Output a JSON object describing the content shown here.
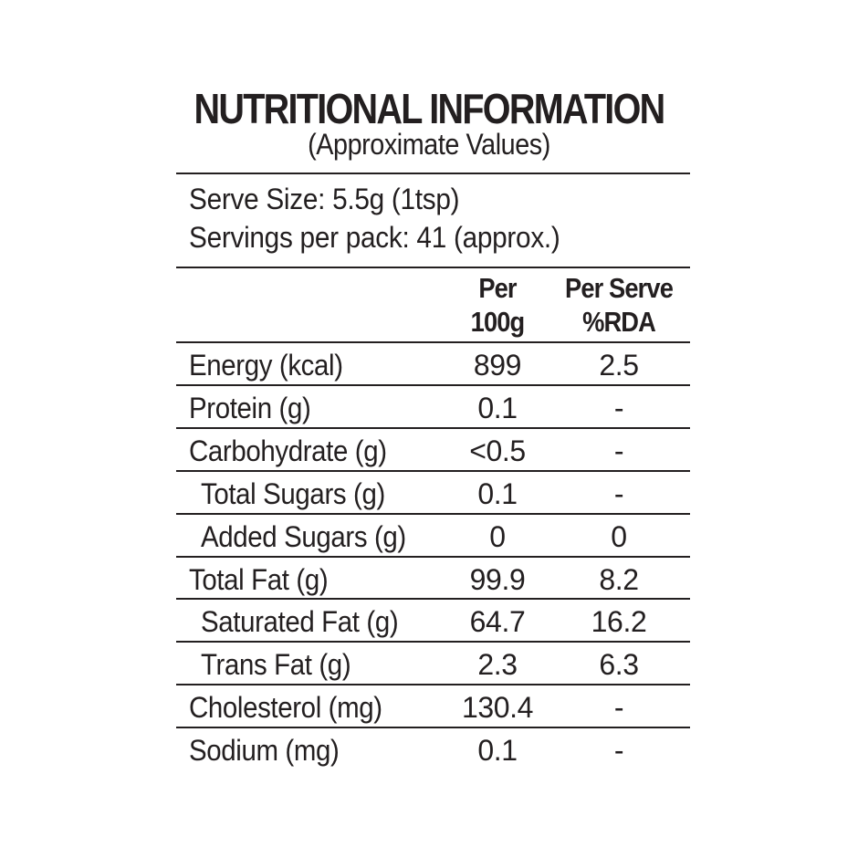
{
  "title": "NUTRITIONAL INFORMATION",
  "subtitle": "(Approximate Values)",
  "serve_size": "Serve Size: 5.5g (1tsp)",
  "servings": "Servings per pack: 41 (approx.)",
  "columns": {
    "per100_l1": "Per",
    "per100_l2": "100g",
    "rda_l1": "Per Serve",
    "rda_l2": "%RDA"
  },
  "rows": [
    {
      "label": "Energy (kcal)",
      "per100": "899",
      "rda": "2.5",
      "indent": false
    },
    {
      "label": "Protein (g)",
      "per100": "0.1",
      "rda": "-",
      "indent": false
    },
    {
      "label": "Carbohydrate (g)",
      "per100": "<0.5",
      "rda": "-",
      "indent": false
    },
    {
      "label": "Total Sugars (g)",
      "per100": "0.1",
      "rda": "-",
      "indent": true
    },
    {
      "label": "Added Sugars (g)",
      "per100": "0",
      "rda": "0",
      "indent": true
    },
    {
      "label": "Total Fat (g)",
      "per100": "99.9",
      "rda": "8.2",
      "indent": false
    },
    {
      "label": "Saturated Fat (g)",
      "per100": "64.7",
      "rda": "16.2",
      "indent": true
    },
    {
      "label": "Trans Fat (g)",
      "per100": "2.3",
      "rda": "6.3",
      "indent": true
    },
    {
      "label": "Cholesterol (mg)",
      "per100": "130.4",
      "rda": "-",
      "indent": false
    },
    {
      "label": "Sodium (mg)",
      "per100": "0.1",
      "rda": "-",
      "indent": false
    }
  ]
}
